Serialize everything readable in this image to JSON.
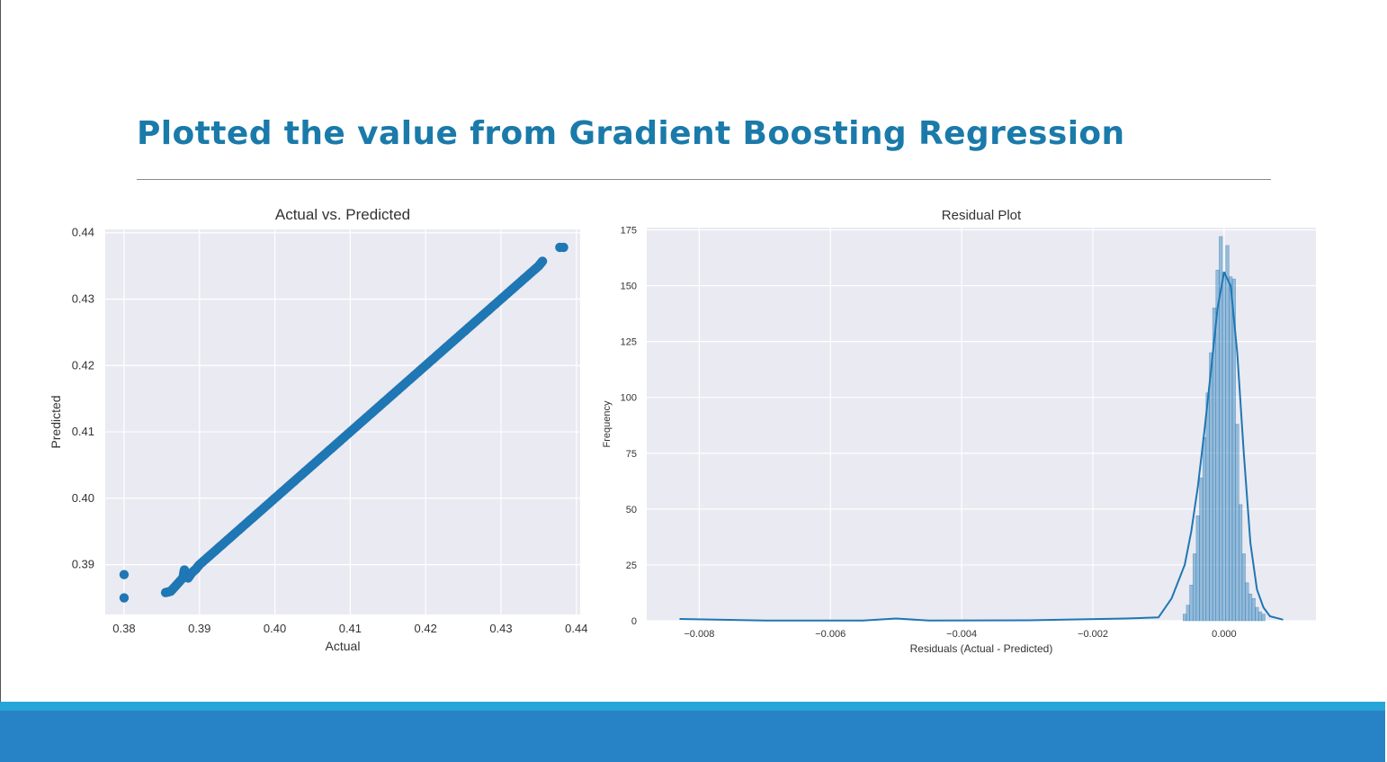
{
  "slide": {
    "title": "Plotted the value from Gradient Boosting Regression"
  },
  "colors": {
    "title": "#1a7aaa",
    "plot_bg": "#eaeaf2",
    "series": "#1f77b4",
    "footer_light": "#27a4d8",
    "footer_dark": "#2783c5"
  },
  "chart_data": [
    {
      "type": "scatter",
      "title": "Actual vs. Predicted",
      "xlabel": "Actual",
      "ylabel": "Predicted",
      "xlim": [
        0.3775,
        0.4405
      ],
      "ylim": [
        0.3825,
        0.4405
      ],
      "xticks": [
        0.38,
        0.39,
        0.4,
        0.41,
        0.42,
        0.43,
        0.44
      ],
      "xtick_labels": [
        "0.38",
        "0.39",
        "0.40",
        "0.41",
        "0.42",
        "0.43",
        "0.44"
      ],
      "yticks": [
        0.39,
        0.4,
        0.41,
        0.42,
        0.43,
        0.44
      ],
      "ytick_labels": [
        "0.39",
        "0.40",
        "0.41",
        "0.42",
        "0.43",
        "0.44"
      ],
      "grid": true,
      "series": [
        {
          "points": [
            [
              0.38,
              0.3885
            ],
            [
              0.38,
              0.385
            ],
            [
              0.3855,
              0.3858
            ],
            [
              0.3862,
              0.386
            ],
            [
              0.387,
              0.387
            ],
            [
              0.3878,
              0.388
            ],
            [
              0.388,
              0.3892
            ],
            [
              0.3885,
              0.388
            ],
            [
              0.389,
              0.3888
            ],
            [
              0.3895,
              0.3893
            ],
            [
              0.39,
              0.39
            ],
            [
              0.391,
              0.391
            ],
            [
              0.392,
              0.392
            ],
            [
              0.393,
              0.393
            ],
            [
              0.394,
              0.394
            ],
            [
              0.395,
              0.395
            ],
            [
              0.396,
              0.396
            ],
            [
              0.397,
              0.397
            ],
            [
              0.398,
              0.398
            ],
            [
              0.399,
              0.399
            ],
            [
              0.4,
              0.4
            ],
            [
              0.401,
              0.401
            ],
            [
              0.402,
              0.402
            ],
            [
              0.403,
              0.403
            ],
            [
              0.404,
              0.404
            ],
            [
              0.405,
              0.405
            ],
            [
              0.406,
              0.406
            ],
            [
              0.407,
              0.407
            ],
            [
              0.408,
              0.408
            ],
            [
              0.409,
              0.409
            ],
            [
              0.41,
              0.41
            ],
            [
              0.411,
              0.411
            ],
            [
              0.412,
              0.412
            ],
            [
              0.413,
              0.413
            ],
            [
              0.414,
              0.414
            ],
            [
              0.415,
              0.415
            ],
            [
              0.416,
              0.416
            ],
            [
              0.417,
              0.417
            ],
            [
              0.418,
              0.418
            ],
            [
              0.419,
              0.419
            ],
            [
              0.42,
              0.42
            ],
            [
              0.421,
              0.421
            ],
            [
              0.422,
              0.422
            ],
            [
              0.423,
              0.423
            ],
            [
              0.424,
              0.424
            ],
            [
              0.425,
              0.425
            ],
            [
              0.426,
              0.426
            ],
            [
              0.427,
              0.427
            ],
            [
              0.428,
              0.428
            ],
            [
              0.429,
              0.429
            ],
            [
              0.43,
              0.43
            ],
            [
              0.431,
              0.431
            ],
            [
              0.432,
              0.432
            ],
            [
              0.433,
              0.433
            ],
            [
              0.434,
              0.434
            ],
            [
              0.435,
              0.435
            ],
            [
              0.4355,
              0.4357
            ],
            [
              0.4378,
              0.4378
            ],
            [
              0.4383,
              0.4378
            ]
          ]
        }
      ]
    },
    {
      "type": "histogram",
      "title": "Residual Plot",
      "xlabel": "Residuals (Actual - Predicted)",
      "ylabel": "Frequency",
      "xlim": [
        -0.0088,
        0.0014
      ],
      "ylim": [
        0,
        176
      ],
      "xticks": [
        -0.008,
        -0.006,
        -0.004,
        -0.002,
        0.0
      ],
      "xtick_labels": [
        "−0.008",
        "−0.006",
        "−0.004",
        "−0.002",
        "0.000"
      ],
      "yticks": [
        0,
        25,
        50,
        75,
        100,
        125,
        150,
        175
      ],
      "ytick_labels": [
        "0",
        "25",
        "50",
        "75",
        "100",
        "125",
        "150",
        "175"
      ],
      "grid": true,
      "bins": {
        "x": [
          -0.0006,
          -0.00055,
          -0.0005,
          -0.00045,
          -0.0004,
          -0.00035,
          -0.0003,
          -0.00025,
          -0.0002,
          -0.00015,
          -0.0001,
          -5e-05,
          0.0,
          5e-05,
          0.0001,
          0.00015,
          0.0002,
          0.00025,
          0.0003,
          0.00035,
          0.0004,
          0.00045,
          0.0005,
          0.00055,
          0.0006
        ],
        "counts": [
          3,
          7,
          16,
          30,
          47,
          64,
          82,
          102,
          120,
          140,
          157,
          172,
          156,
          168,
          154,
          153,
          88,
          52,
          30,
          17,
          12,
          10,
          6,
          4,
          3
        ],
        "width": 5e-05
      },
      "kde": {
        "x": [
          -0.0083,
          -0.007,
          -0.0055,
          -0.005,
          -0.0045,
          -0.003,
          -0.0015,
          -0.001,
          -0.0008,
          -0.0006,
          -0.0005,
          -0.0004,
          -0.0003,
          -0.0002,
          -0.0001,
          0.0,
          0.0001,
          0.0002,
          0.0003,
          0.0004,
          0.0005,
          0.0006,
          0.0007,
          0.0009
        ],
        "y": [
          0.8,
          0.1,
          0.1,
          1.0,
          0.1,
          0.2,
          1.0,
          1.5,
          10,
          25,
          40,
          60,
          85,
          112,
          140,
          156,
          150,
          120,
          75,
          35,
          14,
          6,
          2,
          0.5
        ]
      }
    }
  ]
}
